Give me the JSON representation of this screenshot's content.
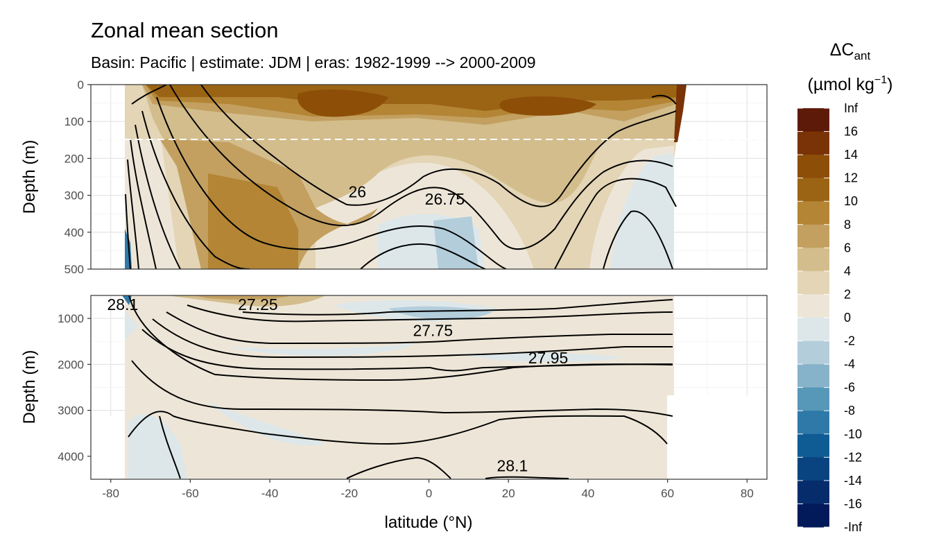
{
  "chart_data": {
    "type": "contour-section",
    "title": "Zonal mean section",
    "subtitle": "Basin: Pacific | estimate: JDM  | eras: 1982-1999 --> 2000-2009",
    "xlabel": "latitude (°N)",
    "x_ticks": [
      -80,
      -60,
      -40,
      -20,
      0,
      20,
      40,
      60,
      80
    ],
    "xlim": [
      -85,
      85
    ],
    "panels": [
      {
        "name": "upper",
        "ylabel": "Depth (m)",
        "ylim": [
          0,
          500
        ],
        "y_ticks": [
          0,
          100,
          200,
          300,
          400,
          500
        ],
        "dashed_reference_depth": 150
      },
      {
        "name": "lower",
        "ylabel": "Depth (m)",
        "ylim": [
          500,
          4500
        ],
        "y_ticks": [
          1000,
          2000,
          3000,
          4000
        ]
      }
    ],
    "isopycnal_labels": [
      {
        "text": "26",
        "lat": -18,
        "depth": 305,
        "panel": 0
      },
      {
        "text": "26.75",
        "lat": 4,
        "depth": 325,
        "panel": 0
      },
      {
        "text": "28.1",
        "lat": -77,
        "depth": 820,
        "panel": 1
      },
      {
        "text": "27.25",
        "lat": -43,
        "depth": 820,
        "panel": 1
      },
      {
        "text": "27.75",
        "lat": 1,
        "depth": 1380,
        "panel": 1
      },
      {
        "text": "27.95",
        "lat": 30,
        "depth": 1980,
        "panel": 1
      },
      {
        "text": "28.1",
        "lat": 21,
        "depth": 4330,
        "panel": 1
      }
    ],
    "legend": {
      "title": "ΔC",
      "title_sub": "ant",
      "unit_prefix": "(µmol kg",
      "unit_sup": "−1",
      "unit_suffix": ")",
      "labels": [
        "Inf",
        "16",
        "14",
        "12",
        "10",
        "8",
        "6",
        "4",
        "2",
        "0",
        "-2",
        "-4",
        "-6",
        "-8",
        "-10",
        "-12",
        "-14",
        "-16",
        "-Inf"
      ],
      "colors": [
        "#5e1a08",
        "#7a3306",
        "#8d4e08",
        "#9b6414",
        "#b38535",
        "#c3a060",
        "#d3bd8c",
        "#e3d5b5",
        "#ede6d8",
        "#dde7ea",
        "#b3cddb",
        "#87b3ca",
        "#5797b8",
        "#2f79a8",
        "#0f5b93",
        "#0a4480",
        "#062c6c",
        "#031a5a"
      ]
    }
  }
}
